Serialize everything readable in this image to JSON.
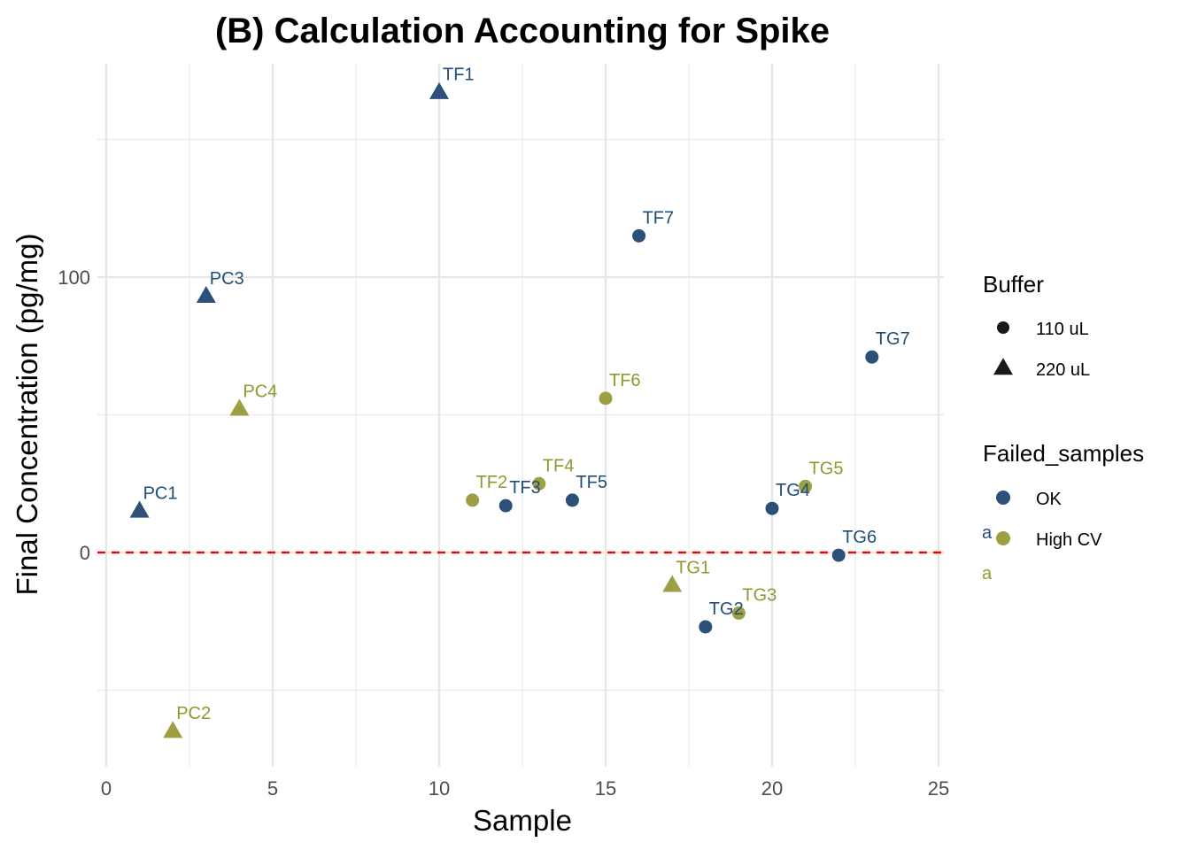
{
  "chart_data": {
    "type": "scatter",
    "title": "(B) Calculation Accounting for Spike",
    "xlabel": "Sample",
    "ylabel": "Final Concentration (pg/mg)",
    "xlim": [
      0,
      25
    ],
    "ylim": [
      -75,
      175
    ],
    "x_ticks": [
      0,
      5,
      10,
      15,
      20,
      25
    ],
    "y_ticks": [
      0,
      100
    ],
    "grid": true,
    "reference_line": {
      "y": 0,
      "color": "#ff0000",
      "style": "dashed"
    },
    "colors": {
      "OK": "#2c5078",
      "High CV": "#9e9e42"
    },
    "label_colors": {
      "OK": "#1f4e79",
      "High CV": "#8f9a2e"
    },
    "legend_position": "right",
    "legends": [
      {
        "title": "Buffer",
        "entries": [
          {
            "label": "110 uL",
            "shape": "circle"
          },
          {
            "label": "220 uL",
            "shape": "triangle"
          }
        ]
      },
      {
        "title": "Failed_samples",
        "entries": [
          {
            "label": "OK",
            "key": "OK"
          },
          {
            "label": "High CV",
            "key": "High CV"
          }
        ],
        "key_letter": "a"
      }
    ],
    "points": [
      {
        "label": "PC1",
        "x": 1,
        "y": 15,
        "buffer": "220 uL",
        "status": "OK"
      },
      {
        "label": "PC2",
        "x": 2,
        "y": -65,
        "buffer": "220 uL",
        "status": "High CV"
      },
      {
        "label": "PC3",
        "x": 3,
        "y": 93,
        "buffer": "220 uL",
        "status": "OK"
      },
      {
        "label": "PC4",
        "x": 4,
        "y": 52,
        "buffer": "220 uL",
        "status": "High CV"
      },
      {
        "label": "TF1",
        "x": 10,
        "y": 167,
        "buffer": "220 uL",
        "status": "OK"
      },
      {
        "label": "TF2",
        "x": 11,
        "y": 19,
        "buffer": "110 uL",
        "status": "High CV"
      },
      {
        "label": "TF3",
        "x": 12,
        "y": 17,
        "buffer": "110 uL",
        "status": "OK"
      },
      {
        "label": "TF4",
        "x": 13,
        "y": 25,
        "buffer": "110 uL",
        "status": "High CV"
      },
      {
        "label": "TF5",
        "x": 14,
        "y": 19,
        "buffer": "110 uL",
        "status": "OK"
      },
      {
        "label": "TF6",
        "x": 15,
        "y": 56,
        "buffer": "110 uL",
        "status": "High CV"
      },
      {
        "label": "TF7",
        "x": 16,
        "y": 115,
        "buffer": "110 uL",
        "status": "OK"
      },
      {
        "label": "TG1",
        "x": 17,
        "y": -12,
        "buffer": "220 uL",
        "status": "High CV"
      },
      {
        "label": "TG2",
        "x": 18,
        "y": -27,
        "buffer": "110 uL",
        "status": "OK"
      },
      {
        "label": "TG3",
        "x": 19,
        "y": -22,
        "buffer": "110 uL",
        "status": "High CV"
      },
      {
        "label": "TG4",
        "x": 20,
        "y": 16,
        "buffer": "110 uL",
        "status": "OK"
      },
      {
        "label": "TG5",
        "x": 21,
        "y": 24,
        "buffer": "110 uL",
        "status": "High CV"
      },
      {
        "label": "TG6",
        "x": 22,
        "y": -1,
        "buffer": "110 uL",
        "status": "OK"
      },
      {
        "label": "TG7",
        "x": 23,
        "y": 71,
        "buffer": "110 uL",
        "status": "OK"
      }
    ]
  }
}
